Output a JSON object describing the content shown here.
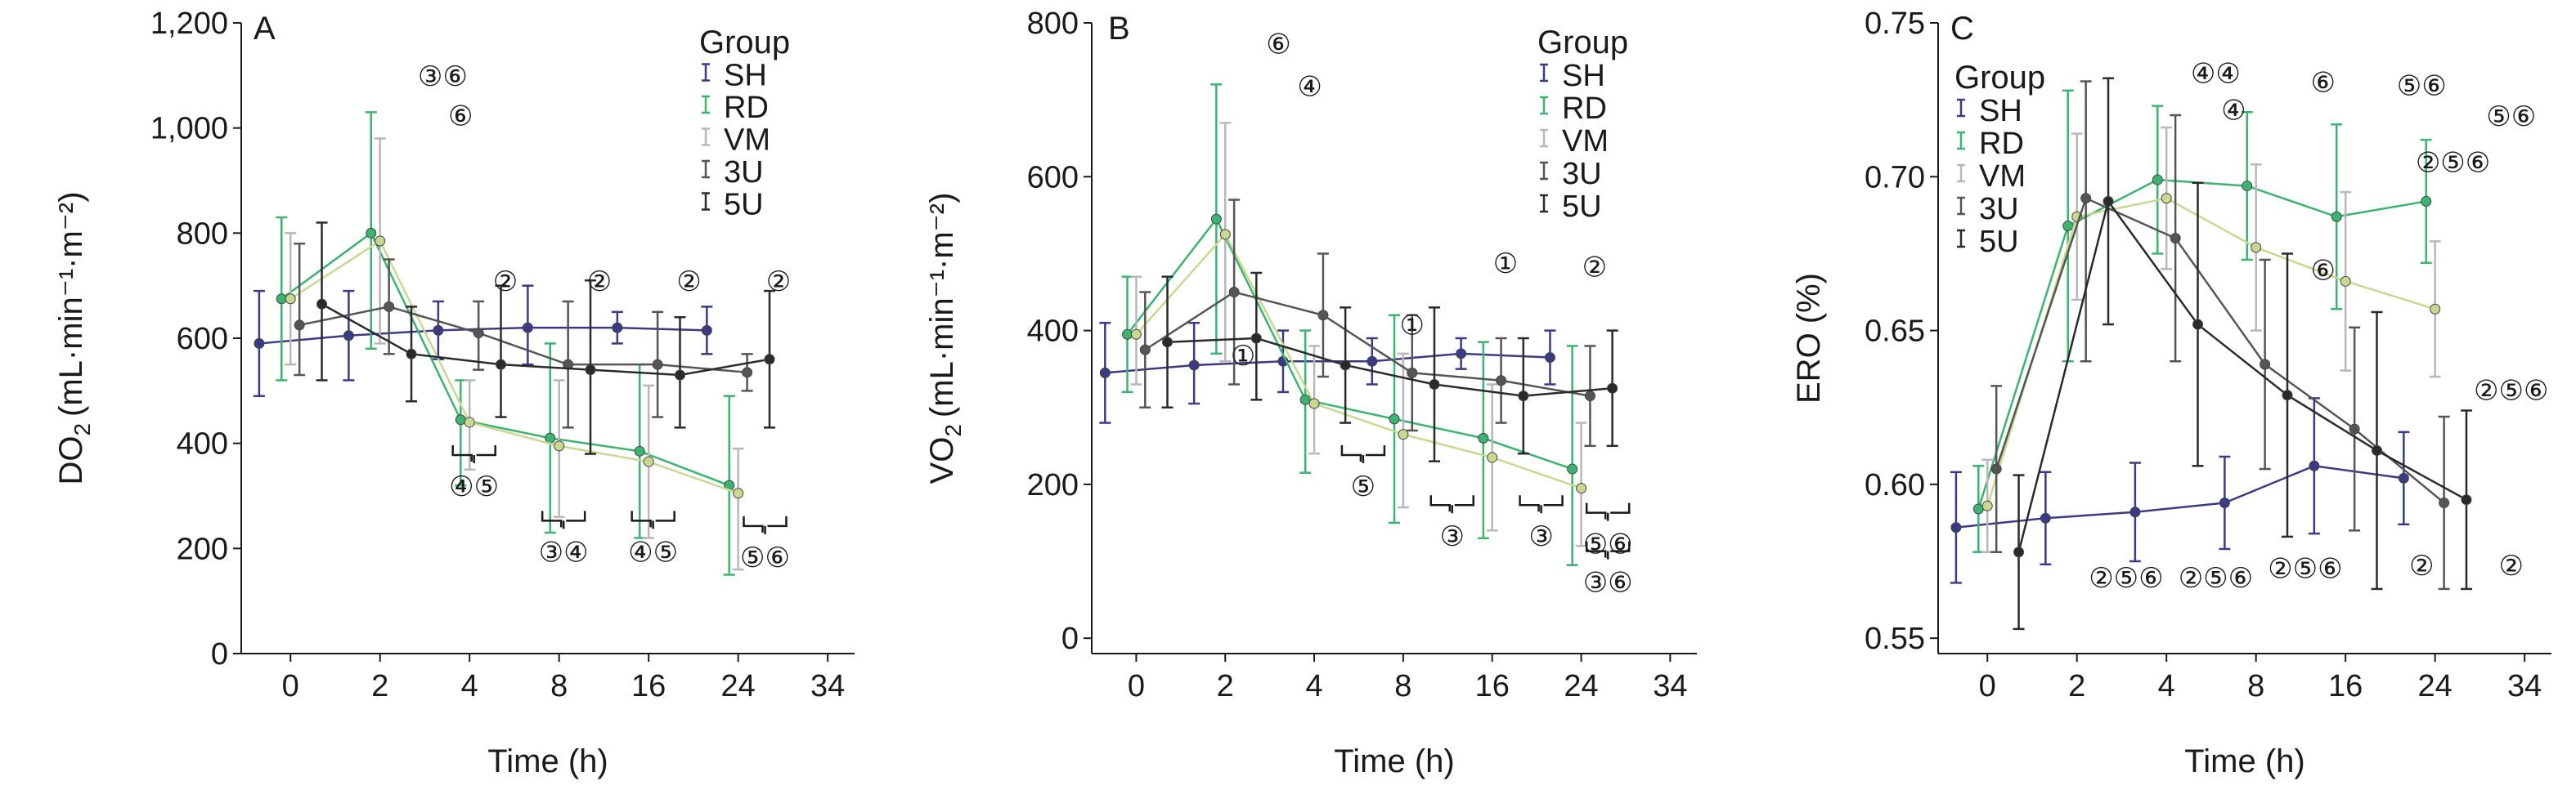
{
  "chart_data": [
    {
      "type": "line",
      "panel_letter": "A",
      "ylabel_main": "DO",
      "ylabel_sub": "2",
      "ylabel_unit": "(mL·min⁻¹·m⁻²)",
      "xlabel": "Time (h)",
      "x_ticks": [
        "0",
        "2",
        "4",
        "8",
        "16",
        "24",
        "34"
      ],
      "y_ticks": [
        "0",
        "200",
        "400",
        "600",
        "800",
        "1,000",
        "1,200"
      ],
      "y_tick_values": [
        0,
        200,
        400,
        600,
        800,
        1000,
        1200
      ],
      "ylim": [
        0,
        1200
      ],
      "legend_title": "Group",
      "series": [
        {
          "name": "SH",
          "color": "#3a3a85",
          "offset": -0.35,
          "values": [
            590,
            605,
            615,
            620,
            620,
            615
          ],
          "err": [
            [
              490,
              690
            ],
            [
              520,
              690
            ],
            [
              560,
              670
            ],
            [
              550,
              700
            ],
            [
              590,
              650
            ],
            [
              570,
              660
            ]
          ]
        },
        {
          "name": "RD",
          "color": "#3cb371",
          "offset": -0.1,
          "values": [
            675,
            800,
            445,
            410,
            385,
            320
          ],
          "err": [
            [
              520,
              830
            ],
            [
              580,
              1030
            ],
            [
              320,
              520
            ],
            [
              230,
              590
            ],
            [
              220,
              550
            ],
            [
              150,
              490
            ]
          ]
        },
        {
          "name": "VM",
          "color": "#c8d890",
          "offset": 0.0,
          "values": [
            675,
            785,
            440,
            395,
            365,
            305
          ],
          "err": [
            [
              550,
              800
            ],
            [
              590,
              980
            ],
            [
              350,
              520
            ],
            [
              260,
              520
            ],
            [
              220,
              510
            ],
            [
              160,
              390
            ]
          ]
        },
        {
          "name": "3U",
          "color": "#555555",
          "offset": 0.1,
          "values": [
            625,
            660,
            610,
            550,
            550,
            535
          ],
          "err": [
            [
              530,
              780
            ],
            [
              570,
              750
            ],
            [
              540,
              670
            ],
            [
              430,
              670
            ],
            [
              450,
              650
            ],
            [
              500,
              570
            ]
          ]
        },
        {
          "name": "5U",
          "color": "#2a2a2a",
          "offset": 0.35,
          "values": [
            665,
            570,
            550,
            540,
            530,
            560
          ],
          "err": [
            [
              520,
              820
            ],
            [
              480,
              660
            ],
            [
              450,
              700
            ],
            [
              380,
              710
            ],
            [
              430,
              640
            ],
            [
              430,
              690
            ]
          ]
        }
      ],
      "annotations": [
        {
          "x": 1.7,
          "y": 1080,
          "text": "③⑥"
        },
        {
          "x": 1.9,
          "y": 1005,
          "text": "⑥"
        },
        {
          "x": 2.4,
          "y": 690,
          "text": "②"
        },
        {
          "x": 3.45,
          "y": 690,
          "text": "②"
        },
        {
          "x": 4.45,
          "y": 690,
          "text": "②"
        },
        {
          "x": 5.45,
          "y": 690,
          "text": "②"
        }
      ],
      "brackets": [
        {
          "x": 2.05,
          "y": 300,
          "text": "④⑤"
        },
        {
          "x": 3.05,
          "y": 175,
          "text": "③④"
        },
        {
          "x": 4.05,
          "y": 175,
          "text": "④⑤"
        },
        {
          "x": 5.3,
          "y": 165,
          "text": "⑤⑥"
        }
      ]
    },
    {
      "type": "line",
      "panel_letter": "B",
      "ylabel_main": "VO",
      "ylabel_sub": "2",
      "ylabel_unit": "(mL·min⁻¹·m⁻²)",
      "xlabel": "Time (h)",
      "x_ticks": [
        "0",
        "2",
        "4",
        "8",
        "16",
        "24",
        "34"
      ],
      "y_ticks": [
        "0",
        "200",
        "400",
        "600",
        "800"
      ],
      "y_tick_values": [
        0,
        200,
        400,
        600,
        800
      ],
      "ylim": [
        -20,
        800
      ],
      "legend_title": "Group",
      "series": [
        {
          "name": "SH",
          "color": "#3a3a85",
          "offset": -0.35,
          "values": [
            345,
            355,
            360,
            360,
            370,
            365
          ],
          "err": [
            [
              280,
              410
            ],
            [
              305,
              410
            ],
            [
              320,
              400
            ],
            [
              330,
              390
            ],
            [
              350,
              390
            ],
            [
              330,
              400
            ]
          ]
        },
        {
          "name": "RD",
          "color": "#3cb371",
          "offset": -0.1,
          "values": [
            395,
            545,
            310,
            285,
            260,
            220
          ],
          "err": [
            [
              320,
              470
            ],
            [
              370,
              720
            ],
            [
              215,
              400
            ],
            [
              150,
              420
            ],
            [
              130,
              385
            ],
            [
              95,
              380
            ]
          ]
        },
        {
          "name": "VM",
          "color": "#c8d890",
          "offset": 0.0,
          "values": [
            395,
            525,
            305,
            265,
            235,
            195
          ],
          "err": [
            [
              330,
              470
            ],
            [
              360,
              670
            ],
            [
              240,
              380
            ],
            [
              170,
              370
            ],
            [
              140,
              330
            ],
            [
              120,
              280
            ]
          ]
        },
        {
          "name": "3U",
          "color": "#555555",
          "offset": 0.1,
          "values": [
            375,
            450,
            420,
            345,
            335,
            315
          ],
          "err": [
            [
              300,
              450
            ],
            [
              330,
              570
            ],
            [
              340,
              500
            ],
            [
              270,
              420
            ],
            [
              280,
              390
            ],
            [
              250,
              380
            ]
          ]
        },
        {
          "name": "5U",
          "color": "#2a2a2a",
          "offset": 0.35,
          "values": [
            385,
            390,
            355,
            330,
            315,
            325
          ],
          "err": [
            [
              300,
              470
            ],
            [
              310,
              475
            ],
            [
              280,
              430
            ],
            [
              230,
              430
            ],
            [
              240,
              390
            ],
            [
              250,
              400
            ]
          ]
        }
      ],
      "annotations": [
        {
          "x": 1.6,
          "y": 760,
          "text": "⑥"
        },
        {
          "x": 1.95,
          "y": 705,
          "text": "④"
        },
        {
          "x": 1.2,
          "y": 355,
          "text": "①"
        },
        {
          "x": 3.1,
          "y": 395,
          "text": "①"
        },
        {
          "x": 4.15,
          "y": 475,
          "text": "①"
        },
        {
          "x": 5.15,
          "y": 470,
          "text": "②"
        }
      ],
      "brackets": [
        {
          "x": 2.55,
          "y": 185,
          "text": "⑤"
        },
        {
          "x": 3.55,
          "y": 120,
          "text": "③"
        },
        {
          "x": 4.55,
          "y": 120,
          "text": "③"
        },
        {
          "x": 5.3,
          "y": 110,
          "text": "⑤⑥"
        },
        {
          "x": 5.3,
          "y": 60,
          "text": "③⑥"
        }
      ]
    },
    {
      "type": "line",
      "panel_letter": "C",
      "ylabel_main": "ERO (%)",
      "ylabel_sub": "",
      "ylabel_unit": "",
      "xlabel": "Time (h)",
      "x_ticks": [
        "0",
        "2",
        "4",
        "8",
        "16",
        "24",
        "34"
      ],
      "y_ticks": [
        "0.55",
        "0.60",
        "0.65",
        "0.70",
        "0.75"
      ],
      "y_tick_values": [
        0.55,
        0.6,
        0.65,
        0.7,
        0.75
      ],
      "ylim": [
        0.545,
        0.75
      ],
      "legend_title": "Group",
      "series": [
        {
          "name": "SH",
          "color": "#3a3a85",
          "offset": -0.35,
          "values": [
            0.586,
            0.589,
            0.591,
            0.594,
            0.606,
            0.602
          ],
          "err": [
            [
              0.568,
              0.604
            ],
            [
              0.574,
              0.604
            ],
            [
              0.575,
              0.607
            ],
            [
              0.579,
              0.609
            ],
            [
              0.584,
              0.628
            ],
            [
              0.587,
              0.617
            ]
          ]
        },
        {
          "name": "RD",
          "color": "#3cb371",
          "offset": -0.1,
          "values": [
            0.592,
            0.684,
            0.699,
            0.697,
            0.687,
            0.692
          ],
          "err": [
            [
              0.578,
              0.606
            ],
            [
              0.64,
              0.728
            ],
            [
              0.675,
              0.723
            ],
            [
              0.673,
              0.721
            ],
            [
              0.657,
              0.717
            ],
            [
              0.672,
              0.712
            ]
          ]
        },
        {
          "name": "VM",
          "color": "#c8d890",
          "offset": 0.0,
          "values": [
            0.593,
            0.687,
            0.693,
            0.677,
            0.666,
            0.657
          ],
          "err": [
            [
              0.578,
              0.608
            ],
            [
              0.66,
              0.714
            ],
            [
              0.67,
              0.716
            ],
            [
              0.65,
              0.704
            ],
            [
              0.637,
              0.695
            ],
            [
              0.635,
              0.679
            ]
          ]
        },
        {
          "name": "3U",
          "color": "#555555",
          "offset": 0.1,
          "values": [
            0.605,
            0.693,
            0.68,
            0.639,
            0.618,
            0.594
          ],
          "err": [
            [
              0.578,
              0.632
            ],
            [
              0.64,
              0.731
            ],
            [
              0.64,
              0.72
            ],
            [
              0.605,
              0.673
            ],
            [
              0.585,
              0.651
            ],
            [
              0.566,
              0.622
            ]
          ]
        },
        {
          "name": "5U",
          "color": "#2a2a2a",
          "offset": 0.35,
          "values": [
            0.578,
            0.692,
            0.652,
            0.629,
            0.611,
            0.595
          ],
          "err": [
            [
              0.553,
              0.603
            ],
            [
              0.652,
              0.732
            ],
            [
              0.606,
              0.698
            ],
            [
              0.583,
              0.675
            ],
            [
              0.566,
              0.656
            ],
            [
              0.566,
              0.624
            ]
          ]
        }
      ],
      "annotations": [
        {
          "x": 2.55,
          "y": 0.7305,
          "text": "④④"
        },
        {
          "x": 2.75,
          "y": 0.7185,
          "text": "④"
        },
        {
          "x": 3.75,
          "y": 0.7275,
          "text": "⑥"
        },
        {
          "x": 4.85,
          "y": 0.7265,
          "text": "⑤⑥"
        },
        {
          "x": 5.85,
          "y": 0.7165,
          "text": "⑤⑥"
        },
        {
          "x": 5.2,
          "y": 0.7015,
          "text": "②⑤⑥"
        },
        {
          "x": 3.75,
          "y": 0.6665,
          "text": "⑥"
        },
        {
          "x": 5.85,
          "y": 0.6275,
          "text": "②⑤⑥"
        },
        {
          "x": 1.55,
          "y": 0.5665,
          "text": "②⑤⑥"
        },
        {
          "x": 2.55,
          "y": 0.5665,
          "text": "②⑤⑥"
        },
        {
          "x": 3.55,
          "y": 0.5695,
          "text": "②⑤⑥"
        },
        {
          "x": 4.85,
          "y": 0.5705,
          "text": "②"
        },
        {
          "x": 5.85,
          "y": 0.5705,
          "text": "②"
        }
      ],
      "brackets": []
    }
  ]
}
